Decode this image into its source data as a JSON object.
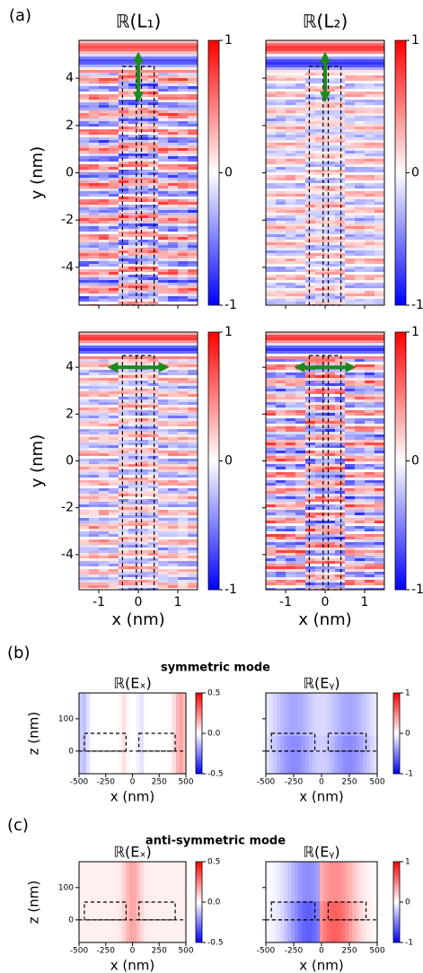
{
  "annotations": {
    "panel_a": "(a)",
    "panel_b": "(b)",
    "panel_c": "(c)",
    "title_b": "symmetric mode",
    "title_c": "anti-symmetric  mode"
  },
  "chart_data": [
    {
      "type": "heatmap",
      "title": "ℝ(L₁)",
      "ylabel": "y (nm)",
      "xlim": [
        -1.5,
        1.5
      ],
      "ylim": [
        -5.6,
        5.6
      ],
      "xticks": [
        -1,
        0,
        1
      ],
      "yticks": [
        -4,
        -2,
        0,
        2,
        4
      ],
      "xtick_labels": false,
      "ytick_labels": true,
      "clim": [
        -1,
        1
      ],
      "cticks": [
        -1,
        0,
        1
      ]
    },
    {
      "type": "heatmap",
      "title": "ℝ(L₂)",
      "xlim": [
        -1.5,
        1.5
      ],
      "ylim": [
        -5.6,
        5.6
      ],
      "xticks": [
        -1,
        0,
        1
      ],
      "yticks": [
        -4,
        -2,
        0,
        2,
        4
      ],
      "xtick_labels": false,
      "ytick_labels": false,
      "clim": [
        -1,
        1
      ],
      "cticks": [
        -1,
        0,
        1
      ]
    },
    {
      "type": "heatmap",
      "xlabel": "x (nm)",
      "ylabel": "y (nm)",
      "xlim": [
        -1.5,
        1.5
      ],
      "ylim": [
        -5.5,
        5.5
      ],
      "xticks": [
        -1,
        0,
        1
      ],
      "yticks": [
        -4,
        -2,
        0,
        2,
        4
      ],
      "xtick_labels": true,
      "ytick_labels": true,
      "clim": [
        -1,
        1
      ],
      "cticks": [
        -1,
        0,
        1
      ]
    },
    {
      "type": "heatmap",
      "xlabel": "x (nm)",
      "xlim": [
        -1.5,
        1.5
      ],
      "ylim": [
        -5.5,
        5.5
      ],
      "xticks": [
        -1,
        0,
        1
      ],
      "yticks": [
        -4,
        -2,
        0,
        2,
        4
      ],
      "xtick_labels": true,
      "ytick_labels": false,
      "clim": [
        -1,
        1
      ],
      "cticks": [
        -1,
        0,
        1
      ]
    },
    {
      "type": "heatmap",
      "title": "ℝ(Eₓ)",
      "xlabel": "x (nm)",
      "ylabel": "z (nm)",
      "xlim": [
        -500,
        500
      ],
      "ylim": [
        -70,
        180
      ],
      "xticks": [
        -500,
        -250,
        0,
        250,
        500
      ],
      "yticks": [
        0,
        100
      ],
      "xtick_labels": true,
      "ytick_labels": true,
      "clim": [
        -0.5,
        0.5
      ],
      "cticks": [
        -0.5,
        {
          "value": 0,
          "label": "0.0"
        },
        0.5
      ]
    },
    {
      "type": "heatmap",
      "title": "ℝ(Eᵧ)",
      "xlabel": "x (nm)",
      "xlim": [
        -500,
        500
      ],
      "ylim": [
        -70,
        180
      ],
      "xticks": [
        -500,
        -250,
        0,
        250,
        500
      ],
      "yticks": [
        0,
        100
      ],
      "xtick_labels": true,
      "ytick_labels": false,
      "clim": [
        -1,
        1
      ],
      "cticks": [
        -1,
        0,
        1
      ]
    },
    {
      "type": "heatmap",
      "title": "ℝ(Eₓ)",
      "xlabel": "x (nm)",
      "ylabel": "z (nm)",
      "xlim": [
        -500,
        500
      ],
      "ylim": [
        -70,
        180
      ],
      "xticks": [
        -500,
        -250,
        0,
        250,
        500
      ],
      "yticks": [
        0,
        100
      ],
      "xtick_labels": true,
      "ytick_labels": true,
      "clim": [
        -0.5,
        0.5
      ],
      "cticks": [
        -0.5,
        {
          "value": 0,
          "label": "0.0"
        },
        0.5
      ]
    },
    {
      "type": "heatmap",
      "title": "ℝ(Eᵧ)",
      "xlabel": "x (nm)",
      "xlim": [
        -500,
        500
      ],
      "ylim": [
        -70,
        180
      ],
      "xticks": [
        -500,
        -250,
        0,
        250,
        500
      ],
      "yticks": [
        0,
        100
      ],
      "xtick_labels": true,
      "ytick_labels": false,
      "clim": [
        -1,
        1
      ],
      "cticks": [
        -1,
        0,
        1
      ]
    }
  ]
}
